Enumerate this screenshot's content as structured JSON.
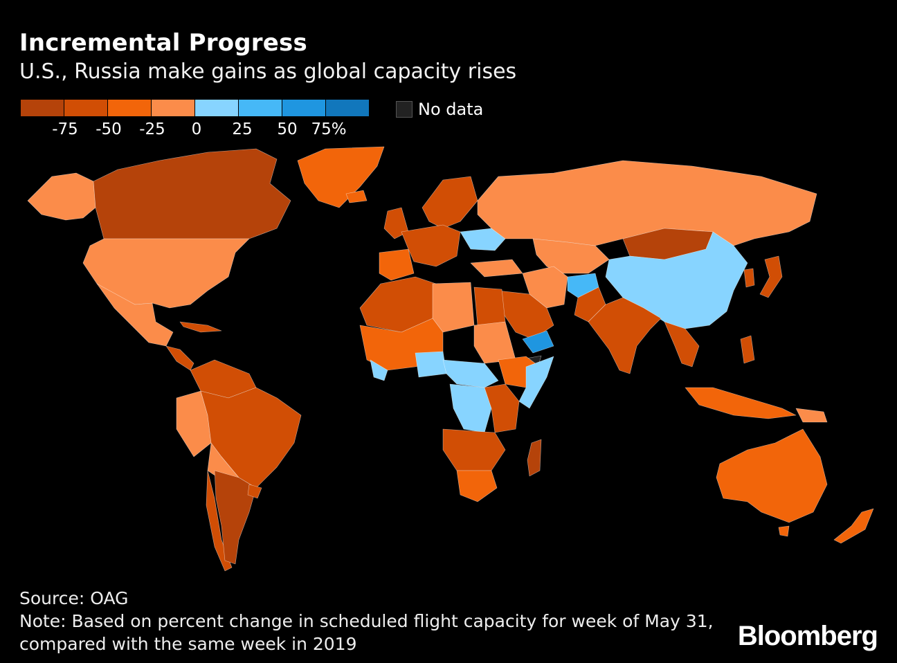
{
  "header": {
    "title": "Incremental Progress",
    "subtitle": "U.S., Russia make gains as global capacity rises"
  },
  "legend": {
    "colors": [
      "#b5430a",
      "#d14e05",
      "#f2650a",
      "#fb8c4a",
      "#87d4ff",
      "#46b8f7",
      "#1f96e0",
      "#1177bc"
    ],
    "ticks": [
      "-75",
      "-50",
      "-25",
      "0",
      "25",
      "50",
      "75%"
    ],
    "nodata_label": "No data",
    "nodata_color": "#222222"
  },
  "footer": {
    "source": "Source: OAG",
    "note": "Note: Based on percent change in scheduled flight capacity for week of May 31, compared with the same week in 2019",
    "brand": "Bloomberg"
  }
}
